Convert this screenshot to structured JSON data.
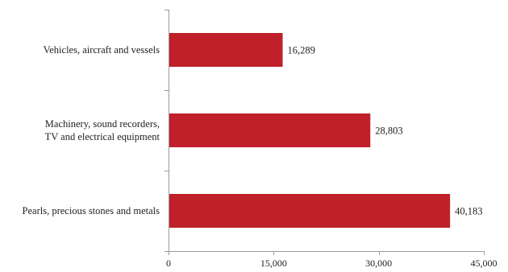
{
  "chart_data": {
    "type": "bar",
    "orientation": "horizontal",
    "title": "",
    "xlabel": "",
    "ylabel": "",
    "categories": [
      [
        "Vehicles, aircraft and vessels"
      ],
      [
        "Machinery, sound recorders,",
        "TV and electrical equipment"
      ],
      [
        "Pearls, precious stones and metals"
      ]
    ],
    "values": [
      16289,
      28803,
      40183
    ],
    "value_labels": [
      "16,289",
      "28,803",
      "40,183"
    ],
    "xlim": [
      0,
      45000
    ],
    "x_ticks": [
      0,
      15000,
      30000,
      45000
    ],
    "x_tick_labels": [
      "0",
      "15,000",
      "30,000",
      "45,000"
    ],
    "grid": false,
    "legend": "none",
    "bar_color": "#c0202a",
    "axis_color": "#9a9a9a",
    "text_color": "#222222"
  }
}
